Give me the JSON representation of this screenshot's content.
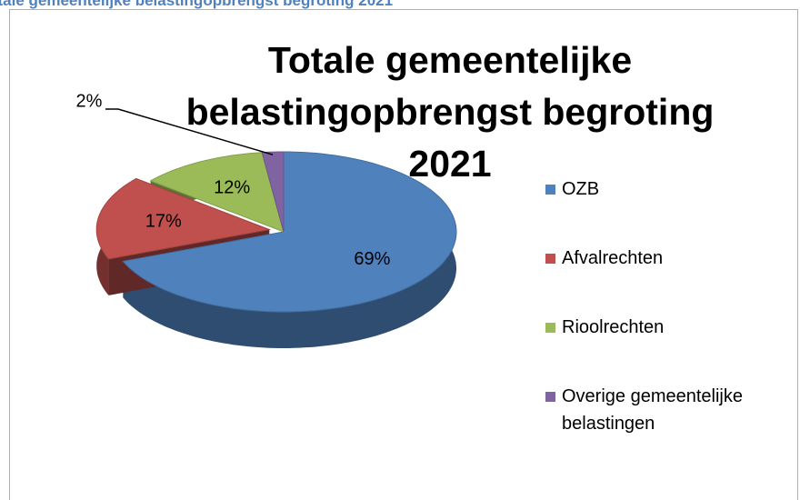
{
  "caption": "Totale gemeentelijke belastingopbrengst begroting 2021",
  "chart_data": {
    "type": "pie",
    "title": "Totale gemeentelijke belastingopbrengst begroting 2021",
    "categories": [
      "OZB",
      "Afvalrechten",
      "Rioolrechten",
      "Overige gemeentelijke belastingen"
    ],
    "values": [
      69,
      17,
      12,
      2
    ],
    "value_labels": [
      "69%",
      "17%",
      "12%",
      "2%"
    ],
    "colors": [
      "#4f81bd",
      "#c0504d",
      "#9bbb59",
      "#8064a2"
    ],
    "legend": "right"
  }
}
